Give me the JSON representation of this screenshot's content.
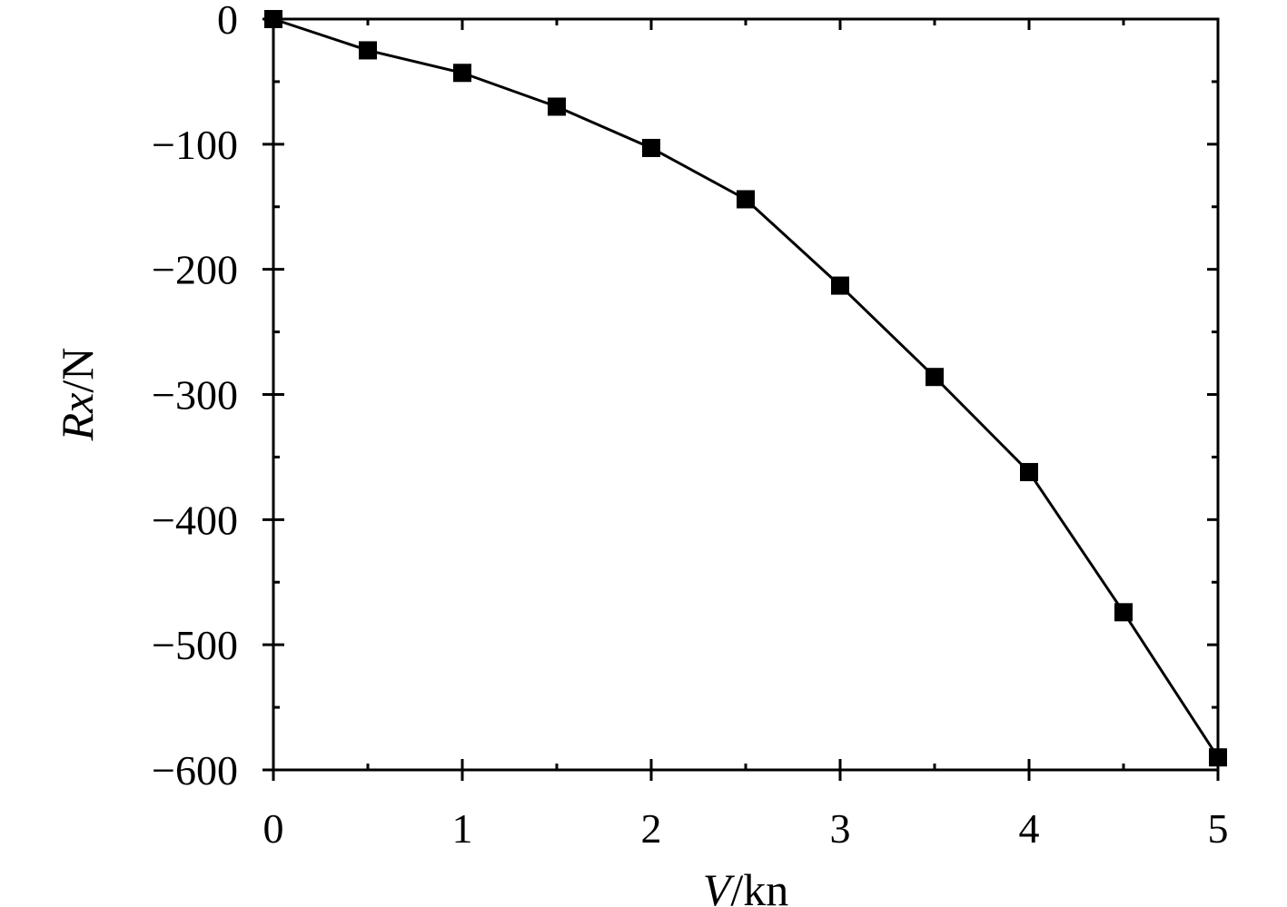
{
  "chart_data": {
    "type": "line",
    "title": "",
    "xlabel": {
      "italic": "V",
      "rest": "/kn"
    },
    "ylabel": {
      "italic": "Rx",
      "rest": "/N"
    },
    "xlim": [
      0,
      5
    ],
    "ylim": [
      -600,
      0
    ],
    "xticks": [
      0,
      1,
      2,
      3,
      4,
      5
    ],
    "xtick_labels": [
      "0",
      "1",
      "2",
      "3",
      "4",
      "5"
    ],
    "yticks": [
      0,
      -100,
      -200,
      -300,
      -400,
      -500,
      -600
    ],
    "ytick_labels": [
      "0",
      "−100",
      "−200",
      "−300",
      "−400",
      "−500",
      "−600"
    ],
    "grid": false,
    "marker": "square",
    "series": [
      {
        "x": [
          0,
          0.5,
          1,
          1.5,
          2,
          2.5,
          3,
          3.5,
          4,
          4.5,
          5
        ],
        "y": [
          0,
          -25,
          -43,
          -70,
          -103,
          -144,
          -213,
          -286,
          -362,
          -474,
          -590
        ],
        "color": "#000000"
      }
    ]
  }
}
